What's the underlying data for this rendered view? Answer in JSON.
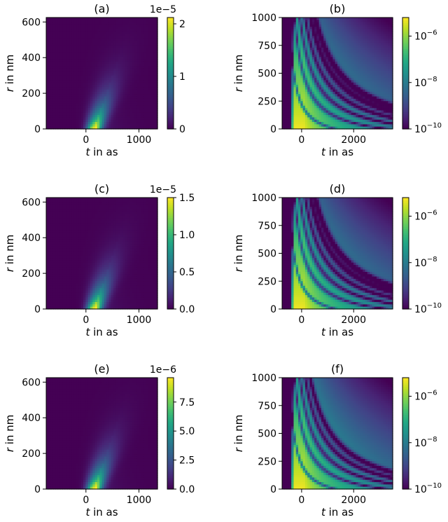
{
  "chart_data": [
    {
      "type": "heatmap",
      "title": "(a)",
      "xlabel_italic": "t",
      "xlabel_rest": " in as",
      "ylabel_italic": "r",
      "ylabel_rest": " in nm",
      "xlim": [
        -750,
        1350
      ],
      "ylim": [
        0,
        625
      ],
      "xticks": [
        0,
        1000
      ],
      "xticklabels": [
        "0",
        "1000"
      ],
      "yticks": [
        0,
        200,
        400,
        600
      ],
      "yticklabels": [
        "0",
        "200",
        "400",
        "600"
      ],
      "colorbar": {
        "scale": "linear",
        "multiplier_label": "1e−5",
        "ticks": [
          0,
          1,
          2
        ],
        "ticklabels": [
          "0",
          "1",
          "2"
        ],
        "range": [
          0,
          2.12
        ]
      },
      "colormap": "viridis",
      "color_scale": "linear",
      "peak": {
        "t": 150,
        "r": 40,
        "value": 2.1e-05
      },
      "rings": 0
    },
    {
      "type": "heatmap",
      "title": "(b)",
      "xlabel_italic": "t",
      "xlabel_rest": " in as",
      "ylabel_italic": "r",
      "ylabel_rest": " in nm",
      "xlim": [
        -750,
        3500
      ],
      "ylim": [
        0,
        1000
      ],
      "xticks": [
        0,
        2000
      ],
      "xticklabels": [
        "0",
        "2000"
      ],
      "yticks": [
        0,
        250,
        500,
        750,
        1000
      ],
      "yticklabels": [
        "0",
        "250",
        "500",
        "750",
        "1000"
      ],
      "colorbar": {
        "scale": "log",
        "ticks": [
          -10,
          -8,
          -6
        ],
        "ticklabels_base": "10",
        "ticklabels_exp": [
          "−10",
          "−8",
          "−6"
        ],
        "range": [
          -10,
          -5.2
        ]
      },
      "colormap": "viridis",
      "color_scale": "log",
      "rings": 6
    },
    {
      "type": "heatmap",
      "title": "(c)",
      "xlabel_italic": "t",
      "xlabel_rest": " in as",
      "ylabel_italic": "r",
      "ylabel_rest": " in nm",
      "xlim": [
        -750,
        1350
      ],
      "ylim": [
        0,
        625
      ],
      "xticks": [
        0,
        1000
      ],
      "xticklabels": [
        "0",
        "1000"
      ],
      "yticks": [
        0,
        200,
        400,
        600
      ],
      "yticklabels": [
        "0",
        "200",
        "400",
        "600"
      ],
      "colorbar": {
        "scale": "linear",
        "multiplier_label": "1e−5",
        "ticks": [
          0,
          0.5,
          1.0,
          1.5
        ],
        "ticklabels": [
          "0.0",
          "0.5",
          "1.0",
          "1.5"
        ],
        "range": [
          0,
          1.5
        ]
      },
      "colormap": "viridis",
      "color_scale": "linear",
      "peak": {
        "t": 150,
        "r": 40,
        "value": 1.5e-05
      },
      "rings": 0
    },
    {
      "type": "heatmap",
      "title": "(d)",
      "xlabel_italic": "t",
      "xlabel_rest": " in as",
      "ylabel_italic": "r",
      "ylabel_rest": " in nm",
      "xlim": [
        -750,
        3500
      ],
      "ylim": [
        0,
        1000
      ],
      "xticks": [
        0,
        2000
      ],
      "xticklabels": [
        "0",
        "2000"
      ],
      "yticks": [
        0,
        250,
        500,
        750,
        1000
      ],
      "yticklabels": [
        "0",
        "250",
        "500",
        "750",
        "1000"
      ],
      "colorbar": {
        "scale": "log",
        "ticks": [
          -10,
          -8,
          -6
        ],
        "ticklabels_base": "10",
        "ticklabels_exp": [
          "−10",
          "−8",
          "−6"
        ],
        "range": [
          -10,
          -5.2
        ]
      },
      "colormap": "viridis",
      "color_scale": "log",
      "rings": 6
    },
    {
      "type": "heatmap",
      "title": "(e)",
      "xlabel_italic": "t",
      "xlabel_rest": " in as",
      "ylabel_italic": "r",
      "ylabel_rest": " in nm",
      "xlim": [
        -750,
        1350
      ],
      "ylim": [
        0,
        625
      ],
      "xticks": [
        0,
        1000
      ],
      "xticklabels": [
        "0",
        "1000"
      ],
      "yticks": [
        0,
        200,
        400,
        600
      ],
      "yticklabels": [
        "0",
        "200",
        "400",
        "600"
      ],
      "colorbar": {
        "scale": "linear",
        "multiplier_label": "1e−6",
        "ticks": [
          0,
          2.5,
          5.0,
          7.5
        ],
        "ticklabels": [
          "0.0",
          "2.5",
          "5.0",
          "7.5"
        ],
        "range": [
          0,
          9.6
        ]
      },
      "colormap": "viridis",
      "color_scale": "linear",
      "peak": {
        "t": 150,
        "r": 40,
        "value": 9.6e-06
      },
      "rings": 0
    },
    {
      "type": "heatmap",
      "title": "(f)",
      "xlabel_italic": "t",
      "xlabel_rest": " in as",
      "ylabel_italic": "r",
      "ylabel_rest": " in nm",
      "xlim": [
        -750,
        3500
      ],
      "ylim": [
        0,
        1000
      ],
      "xticks": [
        0,
        2000
      ],
      "xticklabels": [
        "0",
        "2000"
      ],
      "yticks": [
        0,
        250,
        500,
        750,
        1000
      ],
      "yticklabels": [
        "0",
        "250",
        "500",
        "750",
        "1000"
      ],
      "colorbar": {
        "scale": "log",
        "ticks": [
          -10,
          -8,
          -6
        ],
        "ticklabels_base": "10",
        "ticklabels_exp": [
          "−10",
          "−8",
          "−6"
        ],
        "range": [
          -10,
          -5.2
        ]
      },
      "colormap": "viridis",
      "color_scale": "log",
      "rings": 5
    }
  ]
}
